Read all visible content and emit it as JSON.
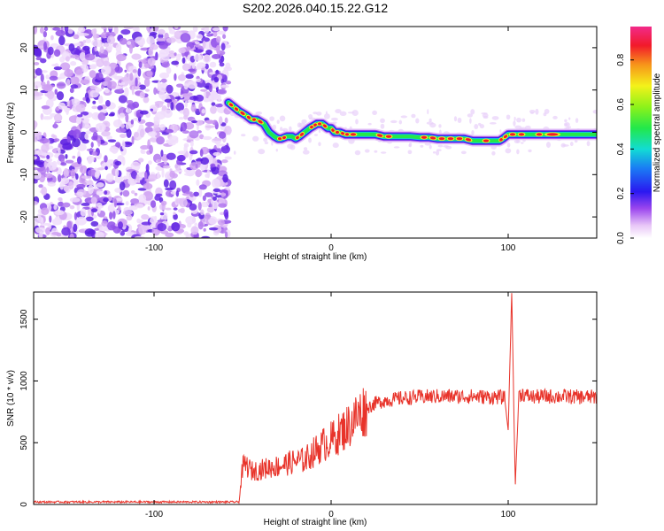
{
  "title": "S202.2026.040.15.22.G12",
  "chart_data": [
    {
      "type": "heatmap",
      "title": "S202.2026.040.15.22.G12",
      "xlabel": "Height of straight line (km)",
      "ylabel": "Frequency (Hz)",
      "xlim": [
        -168,
        150
      ],
      "ylim": [
        -25,
        25
      ],
      "xticks": [
        -100,
        0,
        100
      ],
      "yticks": [
        -20,
        -10,
        0,
        10,
        20
      ],
      "noise_region_x": [
        -168,
        -58
      ],
      "ridge": {
        "x": [
          -58,
          -55,
          -52,
          -48,
          -45,
          -42,
          -38,
          -35,
          -32,
          -30,
          -28,
          -25,
          -22,
          -20,
          -18,
          -15,
          -12,
          -10,
          -8,
          -5,
          -2,
          0,
          2,
          5,
          8,
          10,
          15,
          20,
          25,
          30,
          35,
          40,
          45,
          50,
          55,
          60,
          65,
          70,
          75,
          80,
          85,
          90,
          95,
          97,
          100,
          105,
          110,
          115,
          120,
          130,
          140,
          150
        ],
        "freq": [
          7,
          6,
          5,
          4,
          3,
          3,
          2,
          0,
          -1,
          -1.5,
          -1.5,
          -1,
          -1,
          -1.5,
          -1,
          0,
          1,
          1.5,
          2,
          2,
          1,
          1,
          0,
          0,
          -0.5,
          -0.5,
          -0.5,
          -0.5,
          -0.5,
          -1,
          -1,
          -1,
          -1,
          -1.2,
          -1.2,
          -1.5,
          -1.5,
          -1.5,
          -1.5,
          -2,
          -2,
          -2,
          -2,
          -1.5,
          -0.5,
          -0.5,
          -0.5,
          -0.5,
          -0.5,
          -0.5,
          -0.5,
          -0.5
        ]
      },
      "colorbar": {
        "label": "Normalized spectral amplitude",
        "range": [
          0,
          0.95
        ],
        "ticks": [
          "0.0",
          "0.2",
          "0.4",
          "0.6",
          "0.8"
        ]
      }
    },
    {
      "type": "line",
      "xlabel": "Height of straight line (km)",
      "ylabel": "SNR (10 * v/v)",
      "xlim": [
        -168,
        150
      ],
      "ylim": [
        0,
        1720
      ],
      "xticks": [
        -100,
        0,
        100
      ],
      "yticks": [
        0,
        500,
        1000,
        1500
      ],
      "color": "#e8332a",
      "series": [
        {
          "name": "SNR",
          "x": [
            -168,
            -150,
            -130,
            -110,
            -90,
            -70,
            -52,
            -50,
            -48,
            -45,
            -40,
            -35,
            -30,
            -25,
            -20,
            -15,
            -10,
            -5,
            0,
            5,
            10,
            15,
            20,
            25,
            30,
            40,
            50,
            60,
            70,
            80,
            90,
            95,
            98,
            100,
            102,
            104,
            106,
            108,
            110,
            115,
            120,
            130,
            140,
            150
          ],
          "y": [
            20,
            20,
            20,
            20,
            20,
            20,
            20,
            300,
            320,
            270,
            280,
            300,
            310,
            330,
            350,
            360,
            420,
            480,
            520,
            580,
            640,
            720,
            780,
            820,
            840,
            860,
            870,
            875,
            875,
            875,
            870,
            870,
            860,
            600,
            1720,
            150,
            880,
            900,
            880,
            870,
            875,
            875,
            870,
            870
          ]
        }
      ]
    }
  ]
}
